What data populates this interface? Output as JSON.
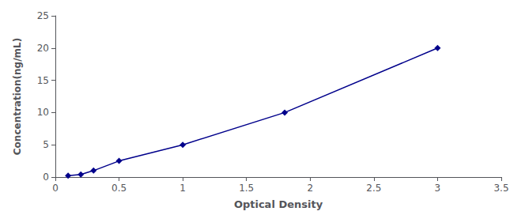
{
  "chart_data": {
    "type": "line",
    "x": [
      0.1,
      0.2,
      0.3,
      0.5,
      1.0,
      1.8,
      3.0
    ],
    "values": [
      0.2,
      0.4,
      1.0,
      2.5,
      5.0,
      10.0,
      20.0
    ],
    "color": "#00008B",
    "marker": "diamond",
    "xlabel": "Optical Density",
    "ylabel": "Concentration(ng/mL)",
    "xlim": [
      0,
      3.5
    ],
    "ylim": [
      0,
      25
    ],
    "xticks": [
      0,
      0.5,
      1,
      1.5,
      2,
      2.5,
      3,
      3.5
    ],
    "yticks": [
      0,
      5,
      10,
      15,
      20,
      25
    ],
    "grid": false
  }
}
